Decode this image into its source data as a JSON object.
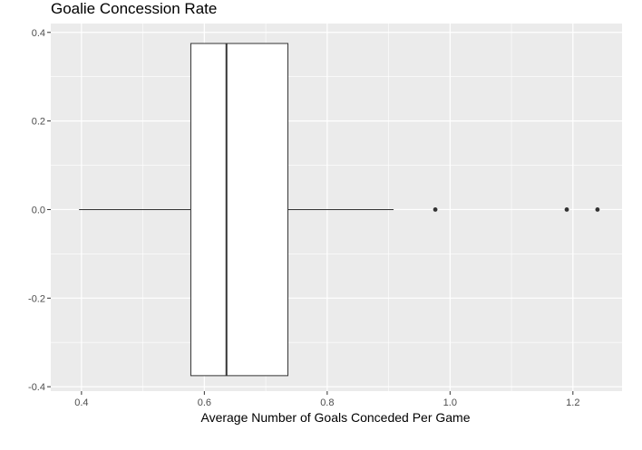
{
  "chart_data": {
    "type": "boxplot",
    "title": "Goalie Concession Rate",
    "xlabel": "Average Number of Goals Conceded Per Game",
    "ylabel": "",
    "xlim": [
      0.35,
      1.28
    ],
    "ylim": [
      -0.41,
      0.42
    ],
    "x_ticks": [
      0.4,
      0.6,
      0.8,
      1.0,
      1.2
    ],
    "x_tick_labels": [
      "0.4",
      "0.6",
      "0.8",
      "1.0",
      "1.2"
    ],
    "y_ticks": [
      -0.4,
      -0.2,
      0.0,
      0.2,
      0.4
    ],
    "y_tick_labels": [
      "-0.4",
      "-0.2",
      "0.0",
      "0.2",
      "0.4"
    ],
    "grid": true,
    "box": {
      "whisker_low": 0.396,
      "q1": 0.578,
      "median": 0.636,
      "q3": 0.736,
      "whisker_high": 0.908,
      "box_halfheight": 0.375,
      "center_y": 0.0
    },
    "outliers": [
      0.976,
      1.19,
      1.24
    ],
    "colors": {
      "panel_bg": "#ebebeb",
      "grid_major": "#ffffff",
      "box_fill": "#ffffff",
      "box_line": "#333333",
      "outlier": "#333333"
    }
  }
}
